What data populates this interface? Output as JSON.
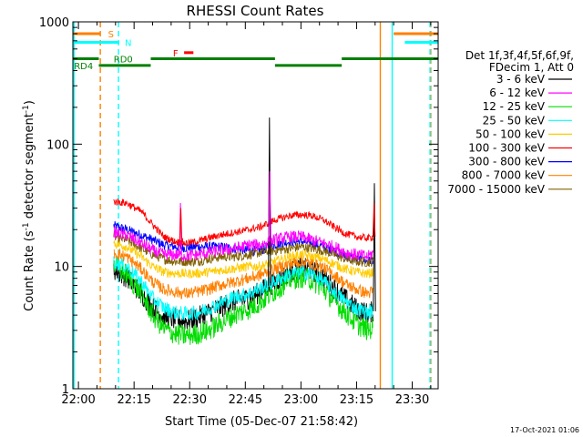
{
  "chart_data": {
    "type": "line",
    "title": "RHESSI Count Rates",
    "xlabel": "Start Time (05-Dec-07 21:58:42)",
    "ylabel_main": "Count Rate (s",
    "ylabel_sup1": "-1",
    "ylabel_mid": " detector segment",
    "ylabel_sup2": "-1",
    "ylabel_end": ")",
    "y_scale": "log",
    "ylim": [
      1,
      1000
    ],
    "xlim_min": [
      -1.5,
      97
    ],
    "x_ticks": [
      {
        "min": 0,
        "label": "22:00"
      },
      {
        "min": 15,
        "label": "22:15"
      },
      {
        "min": 30,
        "label": "22:30"
      },
      {
        "min": 45,
        "label": "22:45"
      },
      {
        "min": 60,
        "label": "23:00"
      },
      {
        "min": 75,
        "label": "23:15"
      },
      {
        "min": 90,
        "label": "23:30"
      }
    ],
    "y_ticks": [
      {
        "value": 1,
        "label": "1"
      },
      {
        "value": 10,
        "label": "10"
      },
      {
        "value": 100,
        "label": "100"
      },
      {
        "value": 1000,
        "label": "1000"
      }
    ],
    "legend": {
      "header1": "Det 1f,3f,4f,5f,6f,9f,",
      "header2": "FDecim 1, Att 0",
      "placement": "right",
      "entries": [
        {
          "label": "3 - 6 keV",
          "color": "#000000"
        },
        {
          "label": "6 - 12 keV",
          "color": "#ff00ff"
        },
        {
          "label": "12 - 25 keV",
          "color": "#00dd00"
        },
        {
          "label": "25 - 50 keV",
          "color": "#00ffff"
        },
        {
          "label": "50 - 100 keV",
          "color": "#ffcc00"
        },
        {
          "label": "100 - 300 keV",
          "color": "#ff0000"
        },
        {
          "label": "300 - 800 keV",
          "color": "#0000ff"
        },
        {
          "label": "800 - 7000 keV",
          "color": "#ff8000"
        },
        {
          "label": "7000 - 15000 keV",
          "color": "#806000"
        }
      ]
    },
    "series": [
      {
        "label": "3 - 6 keV",
        "color": "#000000",
        "jitter": 0.09,
        "points": [
          [
            9.5,
            9.5
          ],
          [
            13,
            8.2
          ],
          [
            17,
            6
          ],
          [
            20,
            4.6
          ],
          [
            23,
            3.9
          ],
          [
            26,
            3.7
          ],
          [
            29,
            3.6
          ],
          [
            32,
            3.8
          ],
          [
            35,
            4.2
          ],
          [
            38,
            4.6
          ],
          [
            42,
            5.2
          ],
          [
            46,
            5.5
          ],
          [
            49,
            6.2
          ],
          [
            53,
            7.5
          ],
          [
            57,
            9.0
          ],
          [
            60,
            9.7
          ],
          [
            63,
            9.3
          ],
          [
            66,
            8.2
          ],
          [
            69,
            6.6
          ],
          [
            72,
            5.4
          ],
          [
            75,
            4.5
          ],
          [
            78,
            4.1
          ],
          [
            79.5,
            4.3
          ]
        ]
      },
      {
        "label": "6 - 12 keV",
        "color": "#ff00ff",
        "jitter": 0.05,
        "points": [
          [
            9.5,
            19
          ],
          [
            13,
            18
          ],
          [
            17,
            15.5
          ],
          [
            20,
            13.5
          ],
          [
            23,
            12.5
          ],
          [
            26,
            12.5
          ],
          [
            29,
            12.2
          ],
          [
            32,
            12.5
          ],
          [
            35,
            13
          ],
          [
            38,
            13.5
          ],
          [
            42,
            14
          ],
          [
            46,
            15
          ],
          [
            49,
            15
          ],
          [
            53,
            16.5
          ],
          [
            57,
            17.5
          ],
          [
            60,
            17.5
          ],
          [
            63,
            16.5
          ],
          [
            66,
            15.5
          ],
          [
            69,
            14.5
          ],
          [
            72,
            13
          ],
          [
            75,
            12.5
          ],
          [
            78,
            12
          ],
          [
            79.5,
            13
          ]
        ]
      },
      {
        "label": "12 - 25 keV",
        "color": "#00dd00",
        "jitter": 0.09,
        "points": [
          [
            9.5,
            10.5
          ],
          [
            13,
            8.5
          ],
          [
            17,
            6
          ],
          [
            20,
            4
          ],
          [
            23,
            3.1
          ],
          [
            26,
            2.8
          ],
          [
            29,
            2.7
          ],
          [
            32,
            2.8
          ],
          [
            35,
            3.0
          ],
          [
            38,
            3.4
          ],
          [
            42,
            4
          ],
          [
            46,
            4.5
          ],
          [
            49,
            5.1
          ],
          [
            53,
            6.3
          ],
          [
            57,
            7.8
          ],
          [
            60,
            8.2
          ],
          [
            63,
            7.7
          ],
          [
            66,
            6.6
          ],
          [
            69,
            5.2
          ],
          [
            72,
            4.2
          ],
          [
            75,
            3.4
          ],
          [
            78,
            3.0
          ],
          [
            79.5,
            3.2
          ]
        ]
      },
      {
        "label": "25 - 50 keV",
        "color": "#00ffff",
        "jitter": 0.06,
        "points": [
          [
            9.5,
            11
          ],
          [
            13,
            10
          ],
          [
            17,
            7.5
          ],
          [
            20,
            5.5
          ],
          [
            23,
            4.6
          ],
          [
            26,
            4.2
          ],
          [
            29,
            4.1
          ],
          [
            32,
            4.2
          ],
          [
            35,
            4.5
          ],
          [
            38,
            5
          ],
          [
            42,
            5.6
          ],
          [
            46,
            6
          ],
          [
            49,
            6.6
          ],
          [
            53,
            7.6
          ],
          [
            57,
            8.6
          ],
          [
            60,
            9
          ],
          [
            63,
            8.6
          ],
          [
            66,
            7.6
          ],
          [
            69,
            6.2
          ],
          [
            72,
            5.2
          ],
          [
            75,
            4.5
          ],
          [
            78,
            4.2
          ],
          [
            79.5,
            4.4
          ]
        ]
      },
      {
        "label": "50 - 100 keV",
        "color": "#ffcc00",
        "jitter": 0.04,
        "points": [
          [
            9.5,
            15.5
          ],
          [
            13,
            14.5
          ],
          [
            17,
            12
          ],
          [
            20,
            10
          ],
          [
            23,
            9
          ],
          [
            26,
            8.8
          ],
          [
            29,
            8.7
          ],
          [
            32,
            8.8
          ],
          [
            35,
            9
          ],
          [
            38,
            9.3
          ],
          [
            42,
            9.6
          ],
          [
            46,
            10
          ],
          [
            49,
            10
          ],
          [
            53,
            11
          ],
          [
            57,
            12
          ],
          [
            60,
            12.5
          ],
          [
            63,
            12
          ],
          [
            66,
            11.5
          ],
          [
            69,
            10.5
          ],
          [
            72,
            9.5
          ],
          [
            75,
            9
          ],
          [
            78,
            8.7
          ],
          [
            79.5,
            9
          ]
        ]
      },
      {
        "label": "100 - 300 keV",
        "color": "#ff0000",
        "jitter": 0.03,
        "points": [
          [
            9.5,
            34
          ],
          [
            13,
            33
          ],
          [
            17,
            28
          ],
          [
            20,
            22
          ],
          [
            23,
            17.5
          ],
          [
            26,
            16
          ],
          [
            29,
            15.5
          ],
          [
            32,
            16
          ],
          [
            35,
            17
          ],
          [
            38,
            18
          ],
          [
            42,
            19
          ],
          [
            46,
            20
          ],
          [
            49,
            21
          ],
          [
            53,
            24
          ],
          [
            57,
            26
          ],
          [
            60,
            26.5
          ],
          [
            63,
            26
          ],
          [
            66,
            24
          ],
          [
            69,
            21
          ],
          [
            72,
            18.5
          ],
          [
            75,
            17.5
          ],
          [
            78,
            17
          ],
          [
            79.5,
            17.5
          ]
        ]
      },
      {
        "label": "300 - 800 keV",
        "color": "#0000ff",
        "jitter": 0.04,
        "points": [
          [
            9.5,
            21.5
          ],
          [
            13,
            20
          ],
          [
            17,
            18
          ],
          [
            20,
            16.5
          ],
          [
            23,
            15
          ],
          [
            26,
            14.5
          ],
          [
            29,
            14.2
          ],
          [
            32,
            14.5
          ],
          [
            35,
            14.5
          ],
          [
            38,
            14.5
          ],
          [
            42,
            14
          ],
          [
            46,
            13.5
          ],
          [
            49,
            13.5
          ],
          [
            53,
            15
          ],
          [
            57,
            16
          ],
          [
            60,
            16
          ],
          [
            63,
            15.5
          ],
          [
            66,
            14.5
          ],
          [
            69,
            13.5
          ],
          [
            72,
            12
          ],
          [
            75,
            11.5
          ],
          [
            78,
            11
          ],
          [
            79.5,
            11.5
          ]
        ]
      },
      {
        "label": "800 - 7000 keV",
        "color": "#ff8000",
        "jitter": 0.05,
        "points": [
          [
            9.5,
            13
          ],
          [
            13,
            12
          ],
          [
            17,
            9.5
          ],
          [
            20,
            7.5
          ],
          [
            23,
            6.5
          ],
          [
            26,
            6.2
          ],
          [
            29,
            6
          ],
          [
            32,
            6.2
          ],
          [
            35,
            6.5
          ],
          [
            38,
            7
          ],
          [
            42,
            7.5
          ],
          [
            46,
            8
          ],
          [
            49,
            8.5
          ],
          [
            53,
            9.5
          ],
          [
            57,
            10.5
          ],
          [
            60,
            11
          ],
          [
            63,
            10.5
          ],
          [
            66,
            9.8
          ],
          [
            69,
            8.5
          ],
          [
            72,
            7.2
          ],
          [
            75,
            6.5
          ],
          [
            78,
            6
          ],
          [
            79.5,
            6.3
          ]
        ]
      },
      {
        "label": "7000 - 15000 keV",
        "color": "#806000",
        "jitter": 0.04,
        "points": [
          [
            9.5,
            17.5
          ],
          [
            13,
            16.5
          ],
          [
            17,
            14
          ],
          [
            20,
            12.5
          ],
          [
            23,
            11.5
          ],
          [
            26,
            11
          ],
          [
            29,
            11
          ],
          [
            32,
            11
          ],
          [
            35,
            11.5
          ],
          [
            38,
            12
          ],
          [
            42,
            12
          ],
          [
            46,
            12.5
          ],
          [
            49,
            13
          ],
          [
            53,
            13.5
          ],
          [
            57,
            14
          ],
          [
            60,
            14.5
          ],
          [
            63,
            14
          ],
          [
            66,
            13.5
          ],
          [
            69,
            12.5
          ],
          [
            72,
            11.5
          ],
          [
            75,
            11
          ],
          [
            78,
            10.8
          ],
          [
            79.5,
            11
          ]
        ]
      }
    ],
    "spikes": [
      {
        "series": "3 - 6 keV",
        "min": 51.5,
        "value": 165
      },
      {
        "series": "6 - 12 keV",
        "min": 51.6,
        "value": 60
      },
      {
        "series": "6 - 12 keV",
        "min": 27.5,
        "value": 33
      },
      {
        "series": "100 - 300 keV",
        "min": 27.6,
        "value": 30
      },
      {
        "series": "3 - 6 keV",
        "min": 79.8,
        "value": 48
      },
      {
        "series": "100 - 300 keV",
        "min": 79.7,
        "value": 33
      }
    ],
    "annotations": [
      {
        "label": "S",
        "color": "#ff8000",
        "y": 800,
        "bars": [
          [
            -1.5,
            6
          ]
        ],
        "label_min": 8
      },
      {
        "label": "N",
        "color": "#00ffff",
        "y": 680,
        "bars": [
          [
            -1.5,
            11
          ]
        ],
        "label_min": 12.5
      },
      {
        "label": "F",
        "color": "#ff0000",
        "y": 560,
        "bars": [
          [
            28.5,
            31
          ]
        ],
        "label_min": 25.5
      },
      {
        "label": "RD0",
        "color": "#008000",
        "y": 500,
        "bars": [
          [
            -1.5,
            5.5
          ],
          [
            19.5,
            53
          ],
          [
            71,
            97
          ]
        ],
        "label_min": 9.5
      },
      {
        "label": "RD4",
        "color": "#008000",
        "y": 440,
        "bars": [
          [
            5.5,
            19.5
          ],
          [
            53,
            71
          ]
        ],
        "label_min": -1.2
      },
      {
        "label": "",
        "color": "#ff8000",
        "y": 800,
        "bars": [
          [
            85,
            97
          ]
        ],
        "label_min": 0
      },
      {
        "label": "",
        "color": "#00ffff",
        "y": 680,
        "bars": [
          [
            88,
            97
          ]
        ],
        "label_min": 0
      }
    ],
    "vlines": [
      {
        "min": -1.2,
        "color": "#00ffff",
        "style": "solid"
      },
      {
        "min": 5.9,
        "color": "#ff8000",
        "style": "dashed"
      },
      {
        "min": 10.8,
        "color": "#00ffff",
        "style": "dashed"
      },
      {
        "min": 81.4,
        "color": "#ff8000",
        "style": "solid"
      },
      {
        "min": 84.6,
        "color": "#00ffff",
        "style": "solid"
      },
      {
        "min": 95.0,
        "color": "#ff8000",
        "style": "dashed"
      },
      {
        "min": 94.8,
        "color": "#00ffff",
        "style": "dashed"
      }
    ],
    "footer": "17-Oct-2021 01:06"
  }
}
